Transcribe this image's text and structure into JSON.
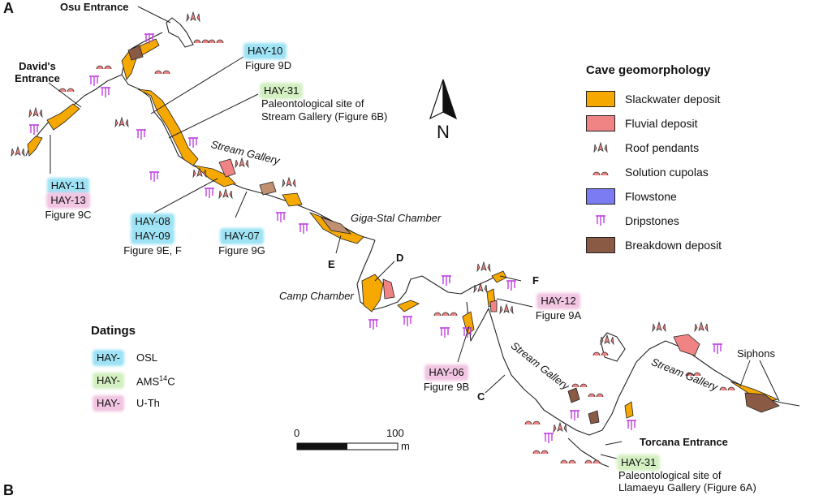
{
  "panels": {
    "top": "A",
    "bottom": "B"
  },
  "entrances": {
    "osu": "Osu Entrance",
    "davids": "David's Entrance",
    "torcana": "Torcana Entrance"
  },
  "places": {
    "stream_gallery_1": "Stream Gallery",
    "stream_gallery_2": "Stream Gallery",
    "stream_gallery_3": "Stream Gallery",
    "giga_stal": "Giga-Stal Chamber",
    "camp": "Camp Chamber",
    "siphons": "Siphons"
  },
  "letters": {
    "c": "C",
    "d": "D",
    "e": "E",
    "f": "F"
  },
  "samples": {
    "hay10": {
      "id": "HAY-10",
      "fig": "Figure 9D"
    },
    "hay31a": {
      "id": "HAY-31",
      "line1": "Paleontological site of",
      "line2": "Stream Gallery (Figure 6B)"
    },
    "hay11": {
      "id": "HAY-11"
    },
    "hay13": {
      "id": "HAY-13",
      "fig": "Figure 9C"
    },
    "hay08": {
      "id": "HAY-08"
    },
    "hay09": {
      "id": "HAY-09",
      "fig": "Figure 9E, F"
    },
    "hay07": {
      "id": "HAY-07",
      "fig": "Figure 9G"
    },
    "hay12": {
      "id": "HAY-12",
      "fig": "Figure 9A"
    },
    "hay06": {
      "id": "HAY-06",
      "fig": "Figure 9B"
    },
    "hay31b": {
      "id": "HAY-31",
      "line1": "Paleontological site of",
      "line2": "Llamaeyu Gallery (Figure 6A)"
    }
  },
  "north": {
    "label": "N"
  },
  "scalebar": {
    "start": "0",
    "end": "100",
    "unit": "m"
  },
  "legend": {
    "title": "Cave geomorphology",
    "items": [
      {
        "label": "Slackwater deposit",
        "color": "#f5a800",
        "symbol": "swatch"
      },
      {
        "label": "Fluvial deposit",
        "color": "#f08484",
        "symbol": "swatch"
      },
      {
        "label": "Roof pendants",
        "color": "#f08484",
        "symbol": "roof-pendant-icon"
      },
      {
        "label": "Solution cupolas",
        "color": "#f08484",
        "symbol": "cupola-icon"
      },
      {
        "label": "Flowstone",
        "color": "#7b7bf2",
        "symbol": "swatch"
      },
      {
        "label": "Dripstones",
        "color": "#c040e0",
        "symbol": "dripstone-icon"
      },
      {
        "label": "Breakdown deposit",
        "color": "#8a5a45",
        "symbol": "swatch"
      }
    ]
  },
  "datings": {
    "title": "Datings",
    "items": [
      {
        "tag": "HAY-",
        "method": "OSL",
        "color": "#9ee3f5"
      },
      {
        "tag": "HAY-",
        "method": "AMS",
        "sup": "14",
        "suffix": "C",
        "color": "#d4f0c2"
      },
      {
        "tag": "HAY-",
        "method": "U-Th",
        "color": "#f2c6e2"
      }
    ]
  }
}
